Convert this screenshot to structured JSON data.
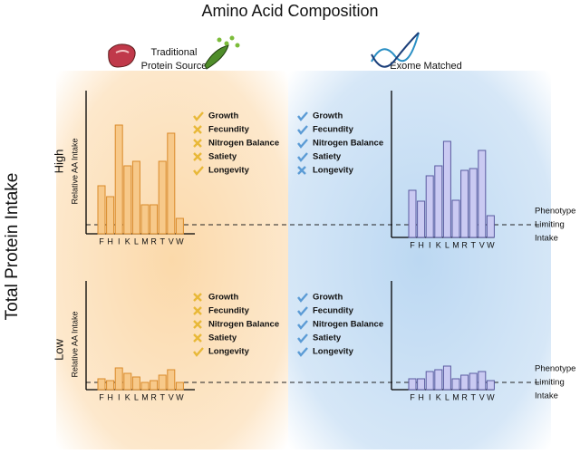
{
  "title": "Amino Acid Composition",
  "y_label": "Total Protein Intake",
  "columns": [
    {
      "label_lines": [
        "Traditional",
        "Protein Source"
      ]
    },
    {
      "label": "Exome Matched"
    }
  ],
  "rows": [
    "High",
    "Low"
  ],
  "axis_label": "Relative AA Intake",
  "categories": [
    "F",
    "H",
    "I",
    "K",
    "L",
    "M",
    "R",
    "T",
    "V",
    "W"
  ],
  "threshold_label": [
    "Phenotype",
    "Limiting",
    "Intake"
  ],
  "panels": [
    {
      "values": [
        53,
        41,
        120,
        75,
        80,
        32,
        32,
        80,
        111,
        17
      ],
      "color": "#f7c98a",
      "edge": "#d98a2a",
      "checklist": [
        {
          "label": "Growth",
          "status": "check"
        },
        {
          "label": "Fecundity",
          "status": "cross"
        },
        {
          "label": "Nitrogen Balance",
          "status": "cross"
        },
        {
          "label": "Satiety",
          "status": "cross"
        },
        {
          "label": "Longevity",
          "status": "check"
        }
      ]
    },
    {
      "values": [
        52,
        40,
        68,
        79,
        106,
        41,
        74,
        76,
        96,
        24
      ],
      "color": "#cacaf2",
      "edge": "#5a5aa0",
      "checklist": [
        {
          "label": "Growth",
          "status": "check"
        },
        {
          "label": "Fecundity",
          "status": "check"
        },
        {
          "label": "Nitrogen Balance",
          "status": "check"
        },
        {
          "label": "Satiety",
          "status": "check"
        },
        {
          "label": "Longevity",
          "status": "cross"
        }
      ]
    },
    {
      "values": [
        12,
        10,
        24,
        18,
        14,
        8,
        10,
        16,
        22,
        8
      ],
      "color": "#f7c98a",
      "edge": "#d98a2a",
      "checklist": [
        {
          "label": "Growth",
          "status": "cross"
        },
        {
          "label": "Fecundity",
          "status": "cross"
        },
        {
          "label": "Nitrogen Balance",
          "status": "cross"
        },
        {
          "label": "Satiety",
          "status": "cross"
        },
        {
          "label": "Longevity",
          "status": "check"
        }
      ]
    },
    {
      "values": [
        12,
        12,
        20,
        22,
        26,
        12,
        16,
        18,
        20,
        10
      ],
      "color": "#cacaf2",
      "edge": "#5a5aa0",
      "checklist": [
        {
          "label": "Growth",
          "status": "check"
        },
        {
          "label": "Fecundity",
          "status": "check"
        },
        {
          "label": "Nitrogen Balance",
          "status": "check"
        },
        {
          "label": "Satiety",
          "status": "check"
        },
        {
          "label": "Longevity",
          "status": "check"
        }
      ]
    }
  ]
}
